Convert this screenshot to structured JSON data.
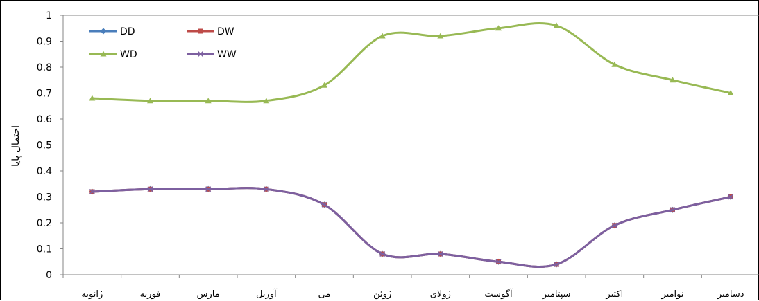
{
  "chart_data": {
    "type": "line",
    "title": "",
    "xlabel": "",
    "ylabel": "احتمال پایا",
    "ylim": [
      0,
      1
    ],
    "yticks": [
      "0",
      "0.1",
      "0.2",
      "0.3",
      "0.4",
      "0.5",
      "0.6",
      "0.7",
      "0.8",
      "0.9",
      "1"
    ],
    "grid": false,
    "smooth": true,
    "legend_placement": "top-left",
    "categories": [
      "ژانویه",
      "فوریه",
      "مارس",
      "آوریل",
      "می",
      "ژوئن",
      "ژولای",
      "آگوست",
      "سپتامبر",
      "اکتبر",
      "نوامبر",
      "دسامبر"
    ],
    "series": [
      {
        "name": "DD",
        "color": "#4a7ebb",
        "marker": "diamond",
        "values": [
          0.32,
          0.33,
          0.33,
          0.33,
          0.27,
          0.08,
          0.08,
          0.05,
          0.04,
          0.19,
          0.25,
          0.3
        ]
      },
      {
        "name": "DW",
        "color": "#be4b48",
        "marker": "square",
        "values": [
          0.32,
          0.33,
          0.33,
          0.33,
          0.27,
          0.08,
          0.08,
          0.05,
          0.04,
          0.19,
          0.25,
          0.3
        ]
      },
      {
        "name": "WD",
        "color": "#98b954",
        "marker": "triangle",
        "values": [
          0.68,
          0.67,
          0.67,
          0.67,
          0.73,
          0.92,
          0.92,
          0.95,
          0.96,
          0.81,
          0.75,
          0.7
        ]
      },
      {
        "name": "WW",
        "color": "#7d60a0",
        "marker": "x",
        "values": [
          0.32,
          0.33,
          0.33,
          0.33,
          0.27,
          0.08,
          0.08,
          0.05,
          0.04,
          0.19,
          0.25,
          0.3
        ]
      }
    ]
  }
}
